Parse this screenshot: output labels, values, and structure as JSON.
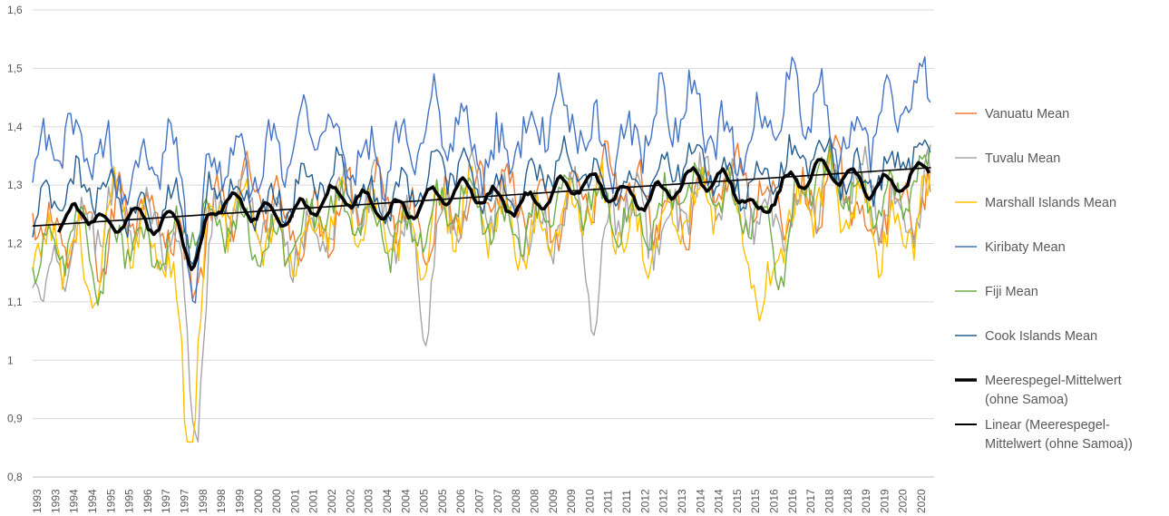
{
  "chart_data": {
    "type": "line",
    "x_labels": [
      "1993",
      "1993",
      "1994",
      "1994",
      "1995",
      "1995",
      "1996",
      "1997",
      "1997",
      "1998",
      "1998",
      "1999",
      "2000",
      "2000",
      "2001",
      "2001",
      "2002",
      "2002",
      "2003",
      "2004",
      "2004",
      "2005",
      "2005",
      "2006",
      "2007",
      "2007",
      "2008",
      "2008",
      "2009",
      "2009",
      "2010",
      "2011",
      "2011",
      "2012",
      "2012",
      "2013",
      "2014",
      "2014",
      "2015",
      "2015",
      "2016",
      "2016",
      "2017",
      "2018",
      "2018",
      "2019",
      "2019",
      "2020",
      "2020"
    ],
    "ylim": [
      0.8,
      1.6
    ],
    "yticks": [
      "0,8",
      "0,9",
      "1",
      "1,1",
      "1,2",
      "1,3",
      "1,4",
      "1,5",
      "1,6"
    ],
    "gridlines": "horizontal",
    "legend_position": "right",
    "colors": {
      "vanuatu": "#ED7D31",
      "tuvalu": "#A5A5A5",
      "marshall": "#FFC000",
      "kiribaty": "#4472C4",
      "fiji": "#70AD47",
      "cook": "#255E91",
      "mean": "#000000",
      "linear": "#000000"
    },
    "series": [
      {
        "name": "Vanuatu Mean",
        "key": "vanuatu",
        "color": "#ED7D31",
        "start": 1993.0,
        "end": 2020.6,
        "base": 1.24,
        "trend": 0.002,
        "amp": 0.075,
        "dips": [
          [
            1995.2,
            -0.07
          ],
          [
            1997.9,
            -0.08
          ],
          [
            2018.6,
            -0.12
          ]
        ]
      },
      {
        "name": "Tuvalu Mean",
        "key": "tuvalu",
        "color": "#A5A5A5",
        "start": 1993.0,
        "end": 2020.6,
        "base": 1.22,
        "trend": 0.0025,
        "amp": 0.08,
        "dips": [
          [
            1993.4,
            -0.1
          ],
          [
            1998.0,
            -0.32
          ],
          [
            2010.3,
            -0.22
          ],
          [
            2005.1,
            -0.12
          ]
        ]
      },
      {
        "name": "Marshall Islands Mean",
        "key": "marshall",
        "color": "#FFC000",
        "start": 1993.0,
        "end": 2020.6,
        "base": 1.22,
        "trend": 0.0012,
        "amp": 0.08,
        "dips": [
          [
            1997.8,
            -0.35
          ],
          [
            1994.8,
            -0.15
          ],
          [
            2015.4,
            -0.15
          ]
        ]
      },
      {
        "name": "Kiribaty Mean",
        "key": "kiribaty",
        "color": "#4472C4",
        "start": 1993.0,
        "end": 2020.6,
        "base": 1.34,
        "trend": 0.003,
        "amp": 0.08,
        "dips": [
          [
            1998.0,
            -0.25
          ]
        ]
      },
      {
        "name": "Fiji Mean",
        "key": "fiji",
        "color": "#70AD47",
        "start": 1993.0,
        "end": 2020.6,
        "base": 1.2,
        "trend": 0.0035,
        "amp": 0.065,
        "dips": [
          [
            1995.1,
            -0.1
          ],
          [
            2016.0,
            -0.12
          ]
        ]
      },
      {
        "name": "Cook Islands Mean",
        "key": "cook",
        "color": "#255E91",
        "start": 1993.0,
        "end": 2020.6,
        "base": 1.27,
        "trend": 0.0025,
        "amp": 0.055,
        "dips": [
          [
            1998.0,
            -0.12
          ]
        ]
      },
      {
        "name": "Meerespegel-Mittelwert (ohne Samoa)",
        "key": "mean",
        "color": "#000000",
        "start": 1993.8,
        "end": 2020.6,
        "base": 1.24,
        "trend": 0.0028,
        "amp": 0.035,
        "dips": [
          [
            1998.0,
            -0.1
          ],
          [
            1995.3,
            -0.04
          ],
          [
            2015.3,
            -0.04
          ]
        ]
      },
      {
        "name": "Linear (Meerespegel-Mittelwert (ohne Samoa))",
        "key": "linear",
        "color": "#000000",
        "trendline": true,
        "x": [
          1993.0,
          2020.6
        ],
        "y": [
          1.23,
          1.33
        ]
      }
    ]
  },
  "legend": {
    "items": [
      {
        "label_lines": [
          "Vanuatu Mean"
        ]
      },
      {
        "label_lines": [
          "Tuvalu Mean"
        ]
      },
      {
        "label_lines": [
          "Marshall Islands Mean"
        ]
      },
      {
        "label_lines": [
          "Kiribaty Mean"
        ]
      },
      {
        "label_lines": [
          "Fiji Mean"
        ]
      },
      {
        "label_lines": [
          "Cook Islands Mean"
        ]
      },
      {
        "label_lines": [
          "Meerespegel-Mittelwert",
          "(ohne Samoa)"
        ]
      },
      {
        "label_lines": [
          "Linear (Meerespegel-",
          "Mittelwert (ohne Samoa))"
        ]
      }
    ]
  }
}
